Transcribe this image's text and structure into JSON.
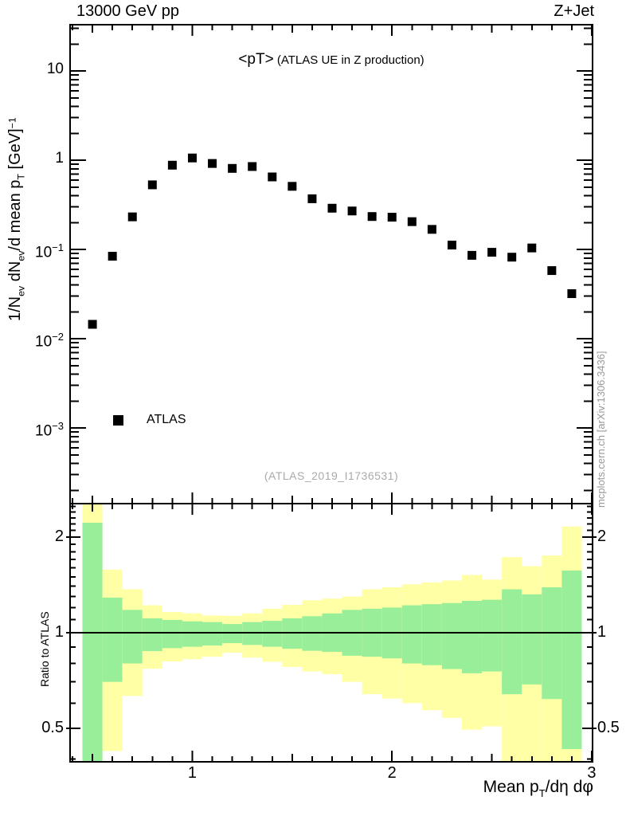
{
  "header": {
    "left_title": "13000 GeV pp",
    "right_title": "Z+Jet"
  },
  "chart_data": {
    "type": "scatter",
    "title": "<pT> (ATLAS UE in Z production)",
    "title_big": "<pT>",
    "title_small": "(ATLAS UE in Z production)",
    "watermark": "(ATLAS_2019_I1736531)",
    "side_note": "mcplots.cern.ch [arXiv:1306.3436]",
    "colors": {
      "band_outer": "#ffffa6",
      "band_inner": "#99ef99",
      "marker": "#000000",
      "frame": "#000000",
      "watermark": "#aaaaaa",
      "side_note": "#999999"
    },
    "x_axis": {
      "title_parts": {
        "p1": "Mean p",
        "s1": "T",
        "p2": "/dη dφ"
      },
      "range": [
        0.388,
        3.004
      ],
      "major_ticks": [
        1,
        2,
        3
      ],
      "major_labels": [
        "1",
        "2",
        "3"
      ],
      "medium_ticks": [
        0.5,
        1.5,
        2.5
      ],
      "minor_tick_start": 0.4,
      "minor_tick_end": 3.0,
      "minor_step": 0.1
    },
    "main_panel": {
      "y_axis": {
        "title_parts": {
          "p1": "1/N",
          "s1": "ev",
          "p2": " dN",
          "s2": "ev",
          "p3": "/d mean p",
          "s3": "T",
          "p4": " [GeV]",
          "sup": "−1"
        },
        "scale": "log",
        "range": [
          0.000142,
          33
        ],
        "tick_labels": [
          {
            "value": 10,
            "base": "10",
            "exp": ""
          },
          {
            "value": 1,
            "base": "1",
            "exp": ""
          },
          {
            "value": 0.1,
            "base": "10",
            "exp": "−1"
          },
          {
            "value": 0.01,
            "base": "10",
            "exp": "−2"
          },
          {
            "value": 0.001,
            "base": "10",
            "exp": "−3"
          }
        ]
      },
      "legend": {
        "label": "ATLAS",
        "marker": "filled-square"
      },
      "series": {
        "name": "ATLAS",
        "marker": "filled-square",
        "x": [
          0.5,
          0.6,
          0.7,
          0.8,
          0.9,
          1.0,
          1.1,
          1.2,
          1.3,
          1.4,
          1.5,
          1.6,
          1.7,
          1.8,
          1.9,
          2.0,
          2.1,
          2.2,
          2.3,
          2.4,
          2.5,
          2.6,
          2.7,
          2.8,
          2.9
        ],
        "y": [
          0.0145,
          0.084,
          0.232,
          0.53,
          0.88,
          1.06,
          0.92,
          0.81,
          0.85,
          0.65,
          0.51,
          0.37,
          0.29,
          0.27,
          0.234,
          0.23,
          0.205,
          0.168,
          0.112,
          0.086,
          0.093,
          0.082,
          0.104,
          0.058,
          0.032
        ]
      }
    },
    "ratio_panel": {
      "y_axis": {
        "title": "Ratio to ATLAS",
        "scale": "log",
        "range": [
          0.392,
          2.55
        ],
        "tick_labels": [
          {
            "value": 2,
            "label": "2"
          },
          {
            "value": 1,
            "label": "1"
          },
          {
            "value": 0.5,
            "label": "0.5"
          }
        ],
        "minor_ticks": [
          0.4,
          0.6,
          0.7,
          0.8,
          0.9,
          1.1,
          1.2,
          1.3,
          1.4,
          1.5,
          1.6,
          1.7,
          1.8,
          1.9,
          2.1,
          2.2,
          2.3,
          2.4,
          2.5
        ]
      },
      "reference_line_y": 1,
      "bands": {
        "bin_centers": [
          0.5,
          0.6,
          0.7,
          0.8,
          0.9,
          1.0,
          1.1,
          1.2,
          1.3,
          1.4,
          1.5,
          1.6,
          1.7,
          1.8,
          1.9,
          2.0,
          2.1,
          2.2,
          2.3,
          2.4,
          2.5,
          2.6,
          2.7,
          2.8,
          2.9
        ],
        "bin_width": 0.1,
        "outer": {
          "lo": [
            0.392,
            0.424,
            0.632,
            0.77,
            0.812,
            0.825,
            0.84,
            0.865,
            0.835,
            0.81,
            0.78,
            0.755,
            0.74,
            0.7,
            0.64,
            0.62,
            0.6,
            0.57,
            0.539,
            0.495,
            0.507,
            0.392,
            0.392,
            0.392,
            0.392
          ],
          "hi": [
            2.55,
            1.58,
            1.37,
            1.22,
            1.162,
            1.151,
            1.133,
            1.13,
            1.15,
            1.19,
            1.224,
            1.265,
            1.28,
            1.3,
            1.37,
            1.39,
            1.42,
            1.44,
            1.46,
            1.52,
            1.47,
            1.73,
            1.62,
            1.75,
            2.16
          ]
        },
        "inner": {
          "lo": [
            0.392,
            0.7,
            0.8,
            0.875,
            0.894,
            0.903,
            0.911,
            0.927,
            0.915,
            0.903,
            0.89,
            0.877,
            0.87,
            0.846,
            0.84,
            0.83,
            0.8,
            0.79,
            0.768,
            0.745,
            0.755,
            0.64,
            0.687,
            0.618,
            0.43
          ],
          "hi": [
            2.22,
            1.29,
            1.18,
            1.11,
            1.097,
            1.086,
            1.08,
            1.065,
            1.08,
            1.09,
            1.11,
            1.127,
            1.15,
            1.18,
            1.19,
            1.2,
            1.22,
            1.23,
            1.24,
            1.26,
            1.27,
            1.37,
            1.32,
            1.39,
            1.57
          ]
        }
      }
    }
  }
}
